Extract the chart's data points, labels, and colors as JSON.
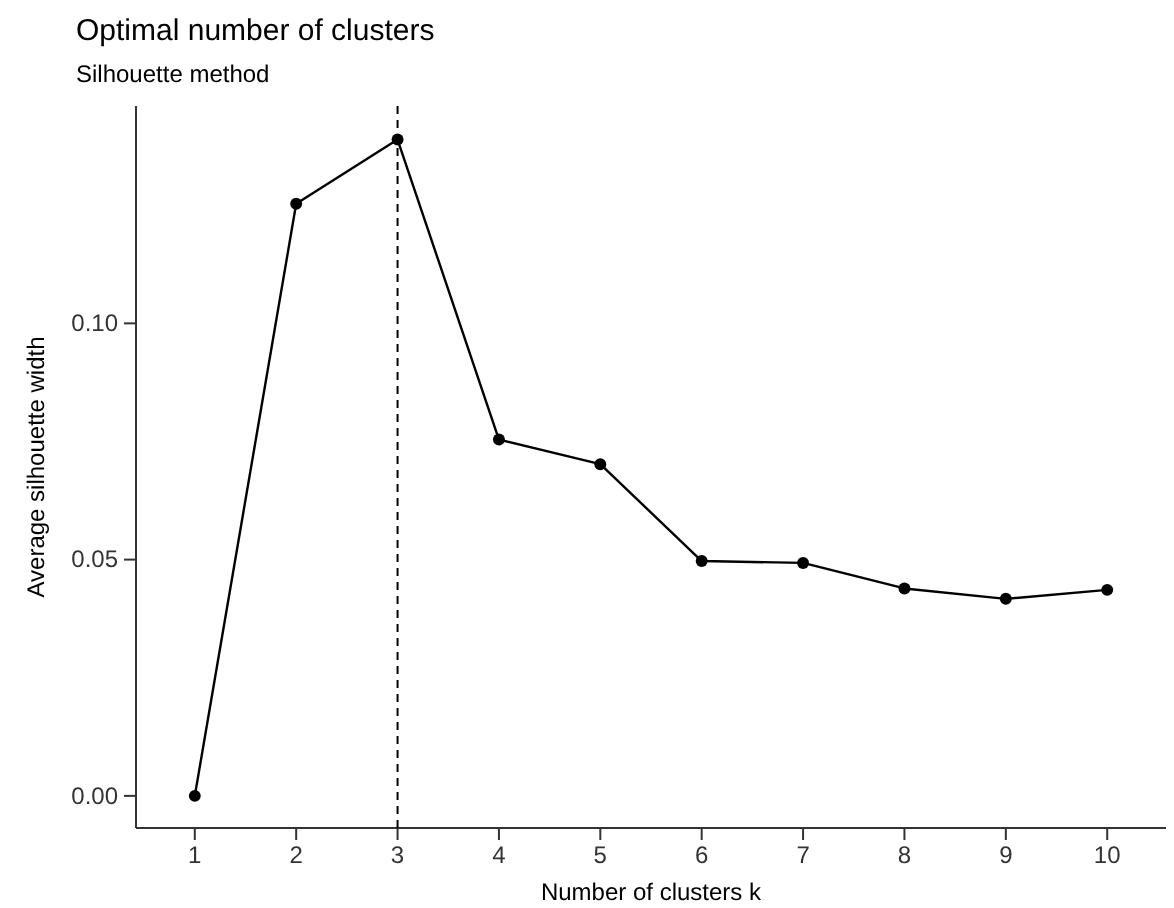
{
  "chart_data": {
    "type": "line",
    "title": "Optimal number of clusters",
    "subtitle": "Silhouette method",
    "xlabel": "Number of clusters k",
    "ylabel": "Average silhouette width",
    "categories": [
      "1",
      "2",
      "3",
      "4",
      "5",
      "6",
      "7",
      "8",
      "9",
      "10"
    ],
    "series": [
      {
        "color": "#000000",
        "values": [
          0,
          0.1253,
          0.1389,
          0.0754,
          0.0702,
          0.0497,
          0.0493,
          0.0439,
          0.0417,
          0.0436
        ]
      }
    ],
    "ylim": [
      -0.0068,
      0.146
    ],
    "yticks": [
      {
        "value": 0,
        "label": "0.00"
      },
      {
        "value": 0.05,
        "label": "0.05"
      },
      {
        "value": 0.1,
        "label": "0.10"
      }
    ],
    "ref_lines": [
      {
        "axis": "x",
        "value": "3",
        "line_style": "dashed",
        "color": "#000000"
      }
    ],
    "marker": "circle",
    "line_style": "solid",
    "grid": false
  }
}
